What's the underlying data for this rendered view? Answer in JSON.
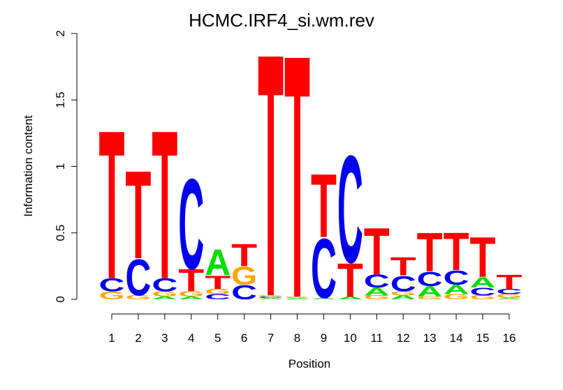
{
  "chart_data": {
    "type": "sequence-logo",
    "title": "HCMC.IRF4_si.wm.rev",
    "xlabel": "Position",
    "ylabel": "Information content",
    "ylim": [
      0,
      2
    ],
    "y_ticks": [
      "0",
      "0.5",
      "1",
      "1.5",
      "2"
    ],
    "positions": [
      "1",
      "2",
      "3",
      "4",
      "5",
      "6",
      "7",
      "8",
      "9",
      "10",
      "11",
      "12",
      "13",
      "14",
      "15",
      "16"
    ],
    "colors": {
      "A": "#00dd00",
      "C": "#0000ee",
      "G": "#ffa500",
      "T": "#ff0000"
    },
    "stacks": [
      [
        [
          "G",
          0.06
        ],
        [
          "C",
          0.1
        ],
        [
          "T",
          1.15
        ]
      ],
      [
        [
          "G",
          0.03
        ],
        [
          "C",
          0.28
        ],
        [
          "T",
          0.68
        ]
      ],
      [
        [
          "A",
          0.02
        ],
        [
          "G",
          0.04
        ],
        [
          "C",
          0.1
        ],
        [
          "T",
          1.15
        ]
      ],
      [
        [
          "A",
          0.02
        ],
        [
          "G",
          0.04
        ],
        [
          "T",
          0.17
        ],
        [
          "C",
          0.7
        ]
      ],
      [
        [
          "C",
          0.04
        ],
        [
          "G",
          0.04
        ],
        [
          "T",
          0.1
        ],
        [
          "A",
          0.2
        ]
      ],
      [
        [
          "C",
          0.11
        ],
        [
          "G",
          0.14
        ],
        [
          "T",
          0.17
        ]
      ],
      [
        [
          "A",
          0.01
        ],
        [
          "C",
          0.01
        ],
        [
          "G",
          0.01
        ],
        [
          "T",
          1.88
        ]
      ],
      [
        [
          "A",
          0.01
        ],
        [
          "G",
          0.01
        ],
        [
          "T",
          1.88
        ]
      ],
      [
        [
          "A",
          0.01
        ],
        [
          "C",
          0.46
        ],
        [
          "T",
          0.49
        ]
      ],
      [
        [
          "A",
          0.02
        ],
        [
          "T",
          0.26
        ],
        [
          "C",
          0.83
        ]
      ],
      [
        [
          "G",
          0.03
        ],
        [
          "A",
          0.06
        ],
        [
          "C",
          0.1
        ],
        [
          "T",
          0.36
        ]
      ],
      [
        [
          "A",
          0.03
        ],
        [
          "G",
          0.03
        ],
        [
          "C",
          0.12
        ],
        [
          "T",
          0.14
        ]
      ],
      [
        [
          "G",
          0.02
        ],
        [
          "A",
          0.08
        ],
        [
          "C",
          0.11
        ],
        [
          "T",
          0.3
        ]
      ],
      [
        [
          "G",
          0.04
        ],
        [
          "A",
          0.07
        ],
        [
          "C",
          0.11
        ],
        [
          "T",
          0.29
        ]
      ],
      [
        [
          "G",
          0.03
        ],
        [
          "C",
          0.06
        ],
        [
          "A",
          0.08
        ],
        [
          "T",
          0.31
        ]
      ],
      [
        [
          "A",
          0.01
        ],
        [
          "G",
          0.03
        ],
        [
          "C",
          0.04
        ],
        [
          "T",
          0.11
        ]
      ]
    ]
  }
}
